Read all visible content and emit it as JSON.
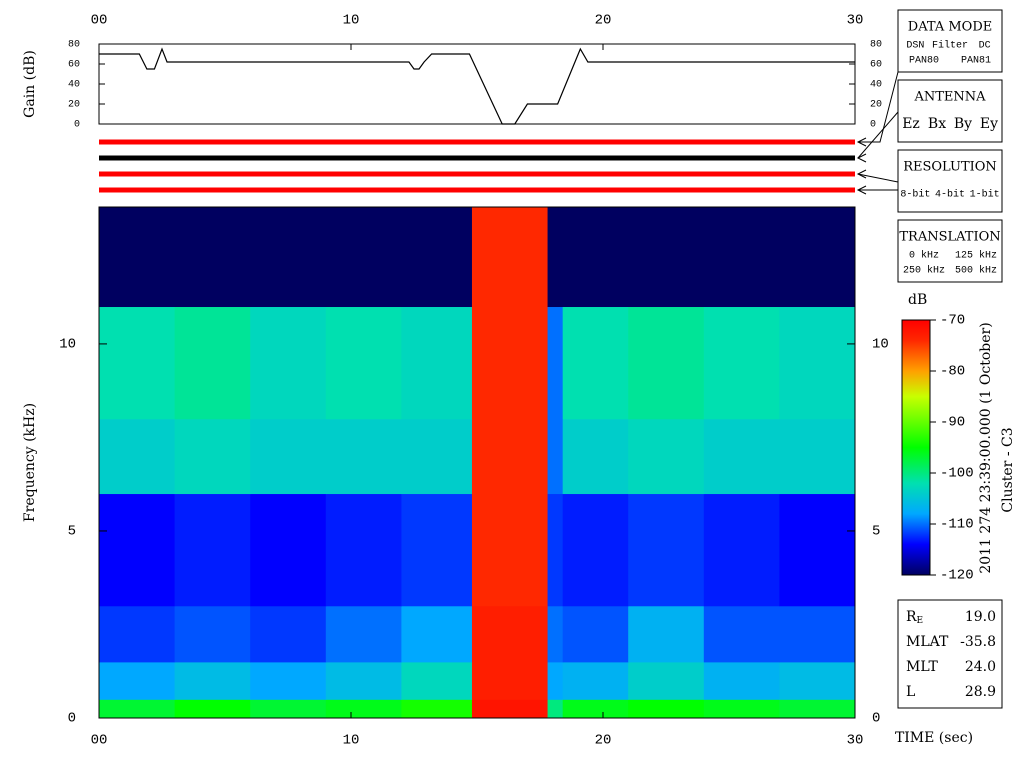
{
  "chart_data": [
    {
      "type": "line",
      "ylabel": "Gain (dB)",
      "color": "#000000",
      "x": [
        0,
        1.6,
        1.9,
        2.2,
        2.5,
        2.7,
        12.3,
        12.5,
        12.7,
        12.9,
        13.2,
        14.7,
        16.0,
        16.5,
        17.0,
        18.2,
        19.1,
        19.4,
        30
      ],
      "values": [
        70,
        70,
        55,
        55,
        75,
        62,
        62,
        55,
        55,
        62,
        70,
        70,
        0,
        0,
        20,
        20,
        75,
        62,
        62
      ],
      "xlim": [
        0,
        30
      ],
      "xticks": [
        {
          "value": 0,
          "label": "00"
        },
        10,
        20,
        30
      ],
      "ylim": [
        0,
        80
      ],
      "yticks": [
        0,
        20,
        40,
        60,
        80
      ]
    },
    {
      "type": "heatmap",
      "ylabel": "Frequency (kHz)",
      "xlabel": "TIME (sec)",
      "x_edges": [
        0,
        3,
        6,
        9,
        12,
        14.8,
        17.8,
        18.4,
        21,
        24,
        27,
        30
      ],
      "y_edges": [
        0,
        0.5,
        1.5,
        3,
        6,
        8,
        11,
        13.66
      ],
      "values": [
        [
          -97,
          -95,
          -97,
          -96,
          -94,
          -72,
          -100,
          -96,
          -95,
          -96,
          -97
        ],
        [
          -108,
          -106,
          -108,
          -106,
          -103,
          -73,
          -108,
          -107,
          -104,
          -107,
          -106
        ],
        [
          -112,
          -111,
          -112,
          -110,
          -108,
          -73,
          -110,
          -111,
          -107,
          -111,
          -111
        ],
        [
          -114,
          -113,
          -114,
          -113,
          -112,
          -74,
          -112,
          -113,
          -112,
          -113,
          -114
        ],
        [
          -104,
          -103,
          -104,
          -104,
          -104,
          -74,
          -110,
          -104,
          -103,
          -104,
          -104
        ],
        [
          -102,
          -101,
          -103,
          -102,
          -103,
          -74,
          -110,
          -102,
          -101,
          -102,
          -103
        ],
        [
          -120,
          -120,
          -120,
          -120,
          -120,
          -74,
          -120,
          -120,
          -120,
          -120,
          -120
        ]
      ],
      "xlim": [
        0,
        30
      ],
      "xticks": [
        {
          "value": 0,
          "label": "00"
        },
        10,
        20,
        30
      ],
      "ylim": [
        0,
        13.66
      ],
      "yticks": [
        0,
        5,
        10
      ],
      "colorbar": {
        "label": "dB",
        "lim": [
          -120,
          -70
        ],
        "ticks": [
          -70,
          -80,
          -90,
          -100,
          -110,
          -120
        ],
        "colormap": [
          {
            "value": -120,
            "color": "#000060"
          },
          {
            "value": -114,
            "color": "#0000ff"
          },
          {
            "value": -108,
            "color": "#00a8ff"
          },
          {
            "value": -102,
            "color": "#00e0b0"
          },
          {
            "value": -95,
            "color": "#00ff00"
          },
          {
            "value": -85,
            "color": "#c8ff00"
          },
          {
            "value": -80,
            "color": "#ffa000"
          },
          {
            "value": -74,
            "color": "#ff2800"
          },
          {
            "value": -70,
            "color": "#ff0000"
          }
        ]
      }
    }
  ],
  "indicators": [
    {
      "color": "#ff0000"
    },
    {
      "color": "#000000"
    },
    {
      "color": "#ff0000"
    },
    {
      "color": "#ff0000"
    }
  ],
  "panels": [
    {
      "title": "DATA MODE",
      "rows": [
        [
          {
            "text": "DSN",
            "color": "#ff0000"
          },
          {
            "text": "Filter",
            "color": "#00d000"
          },
          {
            "text": "DC",
            "color": "#0000ff"
          }
        ],
        [
          {
            "text": "PAN80",
            "color": "#000000"
          },
          {
            "text": "PAN81",
            "color": "#00d8d8"
          }
        ]
      ]
    },
    {
      "title": "ANTENNA",
      "rows": [
        [
          {
            "text": "Ez",
            "color": "#ff0000"
          },
          {
            "text": "Bx",
            "color": "#00c000"
          },
          {
            "text": "By",
            "color": "#0000ff"
          },
          {
            "text": "Ey",
            "color": "#000000"
          }
        ]
      ]
    },
    {
      "title": "RESOLUTION",
      "rows": [
        [
          {
            "text": "8-bit",
            "color": "#ff0000"
          },
          {
            "text": "4-bit",
            "color": "#00c000"
          },
          {
            "text": "1-bit",
            "color": "#0000ff"
          }
        ]
      ]
    },
    {
      "title": "TRANSLATION",
      "rows": [
        [
          {
            "text": "0 kHz",
            "color": "#ff0000"
          },
          {
            "text": "125 kHz",
            "color": "#00c000"
          }
        ],
        [
          {
            "text": "250 kHz",
            "color": "#0000ff"
          },
          {
            "text": "500 kHz",
            "color": "#000000"
          }
        ]
      ]
    }
  ],
  "ephemeris": [
    {
      "label": "R",
      "sub": "E",
      "value": "19.0"
    },
    {
      "label": "MLAT",
      "value": "-35.8"
    },
    {
      "label": "MLT",
      "value": "24.0"
    },
    {
      "label": "L",
      "value": "28.9"
    }
  ],
  "caption": {
    "time": "2011 274 23:39:00.000 (1 October)",
    "spacecraft": "Cluster - C3"
  }
}
